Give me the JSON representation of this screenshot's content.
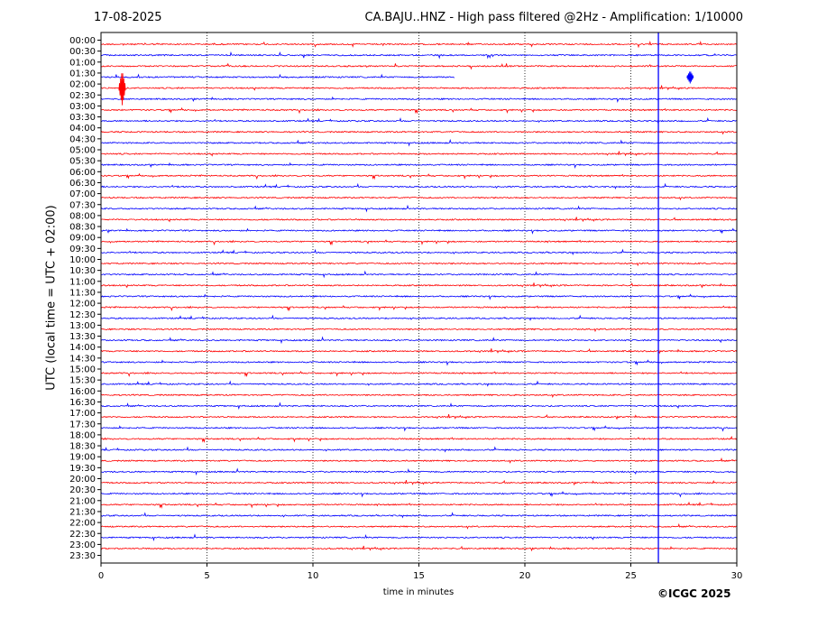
{
  "header": {
    "date": "17-08-2025",
    "title": "CA.BAJU..HNZ - High pass filtered @2Hz - Amplification: 1/10000"
  },
  "footer": {
    "copyright": "©ICGC 2025"
  },
  "chart_data": {
    "type": "line",
    "title": "CA.BAJU..HNZ - High pass filtered @2Hz - Amplification: 1/10000",
    "xlabel": "time in minutes",
    "ylabel": "UTC (local time = UTC + 02:00)",
    "xlim": [
      0,
      30
    ],
    "xticks": [
      0,
      5,
      10,
      15,
      20,
      25,
      30
    ],
    "grid": "vertical dotted at 5-minute intervals",
    "row_labels": [
      "00:00",
      "00:30",
      "01:00",
      "01:30",
      "02:00",
      "02:30",
      "03:00",
      "03:30",
      "04:00",
      "04:30",
      "05:00",
      "05:30",
      "06:00",
      "06:30",
      "07:00",
      "07:30",
      "08:00",
      "08:30",
      "09:00",
      "09:30",
      "10:00",
      "10:30",
      "11:00",
      "11:30",
      "12:00",
      "12:30",
      "13:00",
      "13:30",
      "14:00",
      "14:30",
      "15:00",
      "15:30",
      "16:00",
      "16:30",
      "17:00",
      "17:30",
      "18:00",
      "18:30",
      "19:00",
      "19:30",
      "20:00",
      "20:30",
      "21:00",
      "21:30",
      "22:00",
      "22:30",
      "23:00",
      "23:30"
    ],
    "series_colors": [
      "#ff0000",
      "#0000ff"
    ],
    "trace_extent_note": "trace 01:30 covers 0–16.7 min; last trace 23:30 empty",
    "vertical_signal_minute": 26.3,
    "events": [
      {
        "row": "02:00",
        "minute": 1.0,
        "amplitude": "large"
      },
      {
        "row": "01:30",
        "minute": 27.8,
        "amplitude": "medium"
      }
    ]
  }
}
